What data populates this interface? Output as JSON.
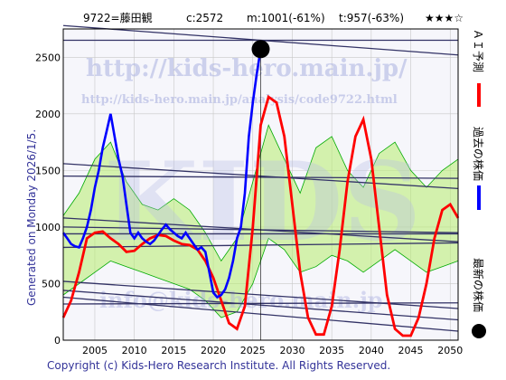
{
  "header": {
    "code": "9722=藤田観",
    "c": "c:2572",
    "m": "m:1001(-61%)",
    "t": "t:957(-63%)",
    "stars": "★★★☆"
  },
  "side_text": "Generated on Monday 2026/1/5.",
  "footer": "Copyright (c) Kids-Hero Research Institute. All Rights Reserved.",
  "watermarks": {
    "url": "http://kids-hero.main.jp/",
    "analysis_url": "http://kids-hero.main.jp/analysis/code9722.html",
    "big": "KIDS",
    "email": "info@kids-hero.main.jp"
  },
  "legend": [
    {
      "label": "ＡＩ予測",
      "color": "#ff0000"
    },
    {
      "label": "過去の株価",
      "color": "#0000ff"
    },
    {
      "label": "最新の株価",
      "color": "#000000"
    }
  ],
  "colors": {
    "plot_bg": "#f6f6fb",
    "grid": "#c8c8c8",
    "band_fill": "#b6ec6e",
    "band_fill_light": "#ffffb0",
    "band_line": "#00aa00",
    "trend": "#333366",
    "history": "#0000ff",
    "prediction": "#ff0000",
    "latest": "#000000"
  },
  "chart_data": {
    "type": "line",
    "xlim": [
      2001,
      2051
    ],
    "ylim": [
      0,
      2750
    ],
    "x_ticks": [
      2005,
      2010,
      2015,
      2020,
      2025,
      2030,
      2035,
      2040,
      2045,
      2050
    ],
    "y_ticks": [
      0,
      500,
      1000,
      1500,
      2000,
      2500
    ],
    "grid": true,
    "latest_point": {
      "x": 2026.0,
      "y": 2572
    },
    "history": [
      [
        2001.0,
        950
      ],
      [
        2001.5,
        900
      ],
      [
        2002.0,
        850
      ],
      [
        2002.5,
        830
      ],
      [
        2003.0,
        820
      ],
      [
        2003.5,
        900
      ],
      [
        2004.0,
        1000
      ],
      [
        2004.5,
        1150
      ],
      [
        2005.0,
        1350
      ],
      [
        2005.5,
        1500
      ],
      [
        2006.0,
        1700
      ],
      [
        2006.5,
        1850
      ],
      [
        2007.0,
        2000
      ],
      [
        2007.5,
        1800
      ],
      [
        2008.0,
        1600
      ],
      [
        2008.5,
        1450
      ],
      [
        2009.0,
        1200
      ],
      [
        2009.5,
        950
      ],
      [
        2010.0,
        900
      ],
      [
        2010.5,
        950
      ],
      [
        2011.0,
        900
      ],
      [
        2011.5,
        870
      ],
      [
        2012.0,
        850
      ],
      [
        2012.5,
        880
      ],
      [
        2013.0,
        930
      ],
      [
        2013.5,
        980
      ],
      [
        2014.0,
        1020
      ],
      [
        2014.5,
        980
      ],
      [
        2015.0,
        950
      ],
      [
        2015.5,
        920
      ],
      [
        2016.0,
        900
      ],
      [
        2016.5,
        950
      ],
      [
        2017.0,
        900
      ],
      [
        2017.5,
        850
      ],
      [
        2018.0,
        800
      ],
      [
        2018.5,
        820
      ],
      [
        2019.0,
        780
      ],
      [
        2019.5,
        600
      ],
      [
        2020.0,
        420
      ],
      [
        2020.5,
        380
      ],
      [
        2021.0,
        400
      ],
      [
        2021.5,
        450
      ],
      [
        2022.0,
        550
      ],
      [
        2022.5,
        700
      ],
      [
        2023.0,
        900
      ],
      [
        2023.5,
        1000
      ],
      [
        2024.0,
        1300
      ],
      [
        2024.5,
        1800
      ],
      [
        2025.0,
        2100
      ],
      [
        2025.5,
        2350
      ],
      [
        2026.0,
        2572
      ]
    ],
    "prediction": [
      [
        2001.0,
        200
      ],
      [
        2002.0,
        350
      ],
      [
        2003.0,
        600
      ],
      [
        2004.0,
        900
      ],
      [
        2005.0,
        950
      ],
      [
        2006.0,
        960
      ],
      [
        2007.0,
        900
      ],
      [
        2008.0,
        850
      ],
      [
        2009.0,
        780
      ],
      [
        2010.0,
        790
      ],
      [
        2011.0,
        850
      ],
      [
        2012.0,
        900
      ],
      [
        2013.0,
        930
      ],
      [
        2014.0,
        920
      ],
      [
        2015.0,
        880
      ],
      [
        2016.0,
        850
      ],
      [
        2017.0,
        840
      ],
      [
        2018.0,
        800
      ],
      [
        2019.0,
        700
      ],
      [
        2020.0,
        550
      ],
      [
        2021.0,
        350
      ],
      [
        2022.0,
        150
      ],
      [
        2023.0,
        100
      ],
      [
        2024.0,
        300
      ],
      [
        2025.0,
        1000
      ],
      [
        2026.0,
        1900
      ],
      [
        2027.0,
        2150
      ],
      [
        2028.0,
        2100
      ],
      [
        2029.0,
        1800
      ],
      [
        2030.0,
        1200
      ],
      [
        2031.0,
        600
      ],
      [
        2032.0,
        200
      ],
      [
        2033.0,
        50
      ],
      [
        2034.0,
        50
      ],
      [
        2035.0,
        300
      ],
      [
        2036.0,
        800
      ],
      [
        2037.0,
        1400
      ],
      [
        2038.0,
        1800
      ],
      [
        2039.0,
        1950
      ],
      [
        2040.0,
        1600
      ],
      [
        2041.0,
        1000
      ],
      [
        2042.0,
        400
      ],
      [
        2043.0,
        100
      ],
      [
        2044.0,
        40
      ],
      [
        2045.0,
        40
      ],
      [
        2046.0,
        200
      ],
      [
        2047.0,
        500
      ],
      [
        2048.0,
        900
      ],
      [
        2049.0,
        1150
      ],
      [
        2050.0,
        1200
      ],
      [
        2051.0,
        1080
      ]
    ],
    "band_upper": [
      [
        2001.0,
        1100
      ],
      [
        2003.0,
        1300
      ],
      [
        2005.0,
        1600
      ],
      [
        2007.0,
        1750
      ],
      [
        2009.0,
        1400
      ],
      [
        2011.0,
        1200
      ],
      [
        2013.0,
        1150
      ],
      [
        2015.0,
        1250
      ],
      [
        2017.0,
        1150
      ],
      [
        2019.0,
        950
      ],
      [
        2021.0,
        700
      ],
      [
        2023.0,
        900
      ],
      [
        2025.0,
        1400
      ],
      [
        2027.0,
        1900
      ],
      [
        2029.0,
        1600
      ],
      [
        2031.0,
        1300
      ],
      [
        2033.0,
        1700
      ],
      [
        2035.0,
        1800
      ],
      [
        2037.0,
        1500
      ],
      [
        2039.0,
        1350
      ],
      [
        2041.0,
        1650
      ],
      [
        2043.0,
        1750
      ],
      [
        2045.0,
        1500
      ],
      [
        2047.0,
        1350
      ],
      [
        2049.0,
        1500
      ],
      [
        2051.0,
        1600
      ]
    ],
    "band_lower": [
      [
        2001.0,
        400
      ],
      [
        2003.0,
        500
      ],
      [
        2005.0,
        600
      ],
      [
        2007.0,
        700
      ],
      [
        2009.0,
        650
      ],
      [
        2011.0,
        600
      ],
      [
        2013.0,
        550
      ],
      [
        2015.0,
        500
      ],
      [
        2017.0,
        450
      ],
      [
        2019.0,
        350
      ],
      [
        2021.0,
        200
      ],
      [
        2023.0,
        250
      ],
      [
        2025.0,
        500
      ],
      [
        2027.0,
        900
      ],
      [
        2029.0,
        800
      ],
      [
        2031.0,
        600
      ],
      [
        2033.0,
        650
      ],
      [
        2035.0,
        750
      ],
      [
        2037.0,
        700
      ],
      [
        2039.0,
        600
      ],
      [
        2041.0,
        700
      ],
      [
        2043.0,
        800
      ],
      [
        2045.0,
        700
      ],
      [
        2047.0,
        600
      ],
      [
        2049.0,
        650
      ],
      [
        2051.0,
        700
      ]
    ],
    "trend_lines": [
      [
        [
          2001.0,
          2780
        ],
        [
          2051.0,
          2520
        ]
      ],
      [
        [
          2001.0,
          2650
        ],
        [
          2051.0,
          2650
        ]
      ],
      [
        [
          2001.0,
          1560
        ],
        [
          2051.0,
          1340
        ]
      ],
      [
        [
          2001.0,
          1450
        ],
        [
          2051.0,
          1430
        ]
      ],
      [
        [
          2001.0,
          1000
        ],
        [
          2051.0,
          950
        ]
      ],
      [
        [
          2001.0,
          1080
        ],
        [
          2051.0,
          870
        ]
      ],
      [
        [
          2001.0,
          940
        ],
        [
          2051.0,
          940
        ]
      ],
      [
        [
          2001.0,
          820
        ],
        [
          2051.0,
          860
        ]
      ],
      [
        [
          2001.0,
          520
        ],
        [
          2051.0,
          280
        ]
      ],
      [
        [
          2001.0,
          440
        ],
        [
          2051.0,
          180
        ]
      ],
      [
        [
          2001.0,
          380
        ],
        [
          2051.0,
          80
        ]
      ],
      [
        [
          2001.0,
          320
        ],
        [
          2051.0,
          330
        ]
      ]
    ]
  }
}
